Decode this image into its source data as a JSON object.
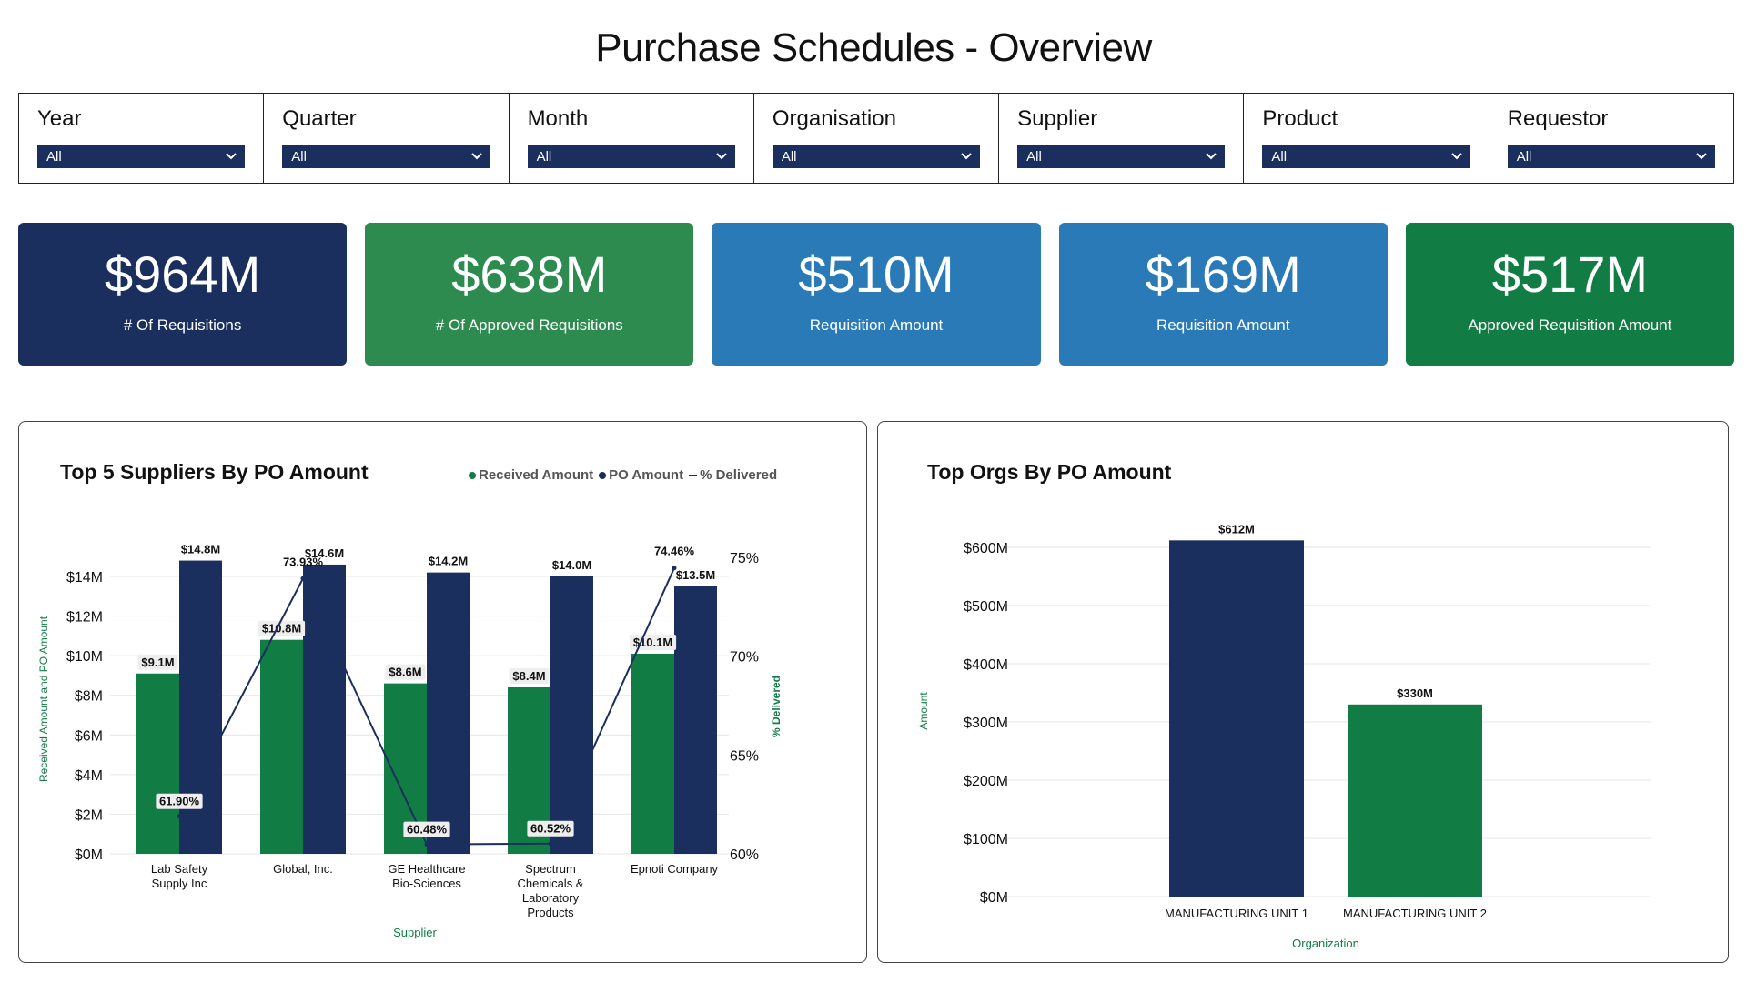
{
  "page": {
    "title": "Purchase Schedules - Overview"
  },
  "filters": [
    {
      "label": "Year",
      "value": "All"
    },
    {
      "label": "Quarter",
      "value": "All"
    },
    {
      "label": "Month",
      "value": "All"
    },
    {
      "label": "Organisation",
      "value": "All"
    },
    {
      "label": "Supplier",
      "value": "All"
    },
    {
      "label": "Product",
      "value": "All"
    },
    {
      "label": "Requestor",
      "value": "All"
    }
  ],
  "kpis": [
    {
      "value": "$964M",
      "label": "# Of Requisitions",
      "color": "#1a2f5e"
    },
    {
      "value": "$638M",
      "label": "# Of Approved Requisitions",
      "color": "#2e8b50"
    },
    {
      "value": "$510M",
      "label": "Requisition Amount",
      "color": "#2a7ab8"
    },
    {
      "value": "$169M",
      "label": "Requisition Amount",
      "color": "#2a7ab8"
    },
    {
      "value": "$517M",
      "label": "Approved Requisition Amount",
      "color": "#127c45"
    }
  ],
  "colors": {
    "navy": "#1a2f5e",
    "green": "#127c45",
    "axis_label": "#127c45",
    "grid": "#e6e6e6"
  },
  "icons": {
    "dropdown": "chevron-down-icon"
  },
  "chart_data": [
    {
      "type": "bar",
      "title": "Top 5 Suppliers By PO Amount",
      "legend": [
        "Received Amount",
        "PO Amount",
        "% Delivered"
      ],
      "legend_position": "top-right",
      "xlabel": "Supplier",
      "ylabel": "Received Amount and PO Amount",
      "y2label": "% Delivered",
      "categories": [
        [
          "Lab Safety",
          "Supply Inc"
        ],
        [
          "Global, Inc."
        ],
        [
          "GE Healthcare",
          "Bio-Sciences"
        ],
        [
          "Spectrum",
          "Chemicals &",
          "Laboratory",
          "Products"
        ],
        [
          "Epnoti Company"
        ]
      ],
      "series": [
        {
          "name": "Received Amount",
          "type": "bar",
          "color": "#127c45",
          "values": [
            9.1,
            10.8,
            8.6,
            8.4,
            10.1
          ],
          "labels": [
            "$9.1M",
            "$10.8M",
            "$8.6M",
            "$8.4M",
            "$10.1M"
          ]
        },
        {
          "name": "PO Amount",
          "type": "bar",
          "color": "#1a2f5e",
          "values": [
            14.8,
            14.6,
            14.2,
            14.0,
            13.5
          ],
          "labels": [
            "$14.8M",
            "$14.6M",
            "$14.2M",
            "$14.0M",
            "$13.5M"
          ]
        },
        {
          "name": "% Delivered",
          "type": "line",
          "color": "#1a2f5e",
          "values": [
            61.9,
            73.93,
            60.48,
            60.52,
            74.46
          ],
          "labels": [
            "61.90%",
            "73.93%",
            "60.48%",
            "60.52%",
            "74.46%"
          ]
        }
      ],
      "ylim": [
        0,
        14
      ],
      "yticks": [
        "$0M",
        "$2M",
        "$4M",
        "$6M",
        "$8M",
        "$10M",
        "$12M",
        "$14M"
      ],
      "y2lim": [
        60,
        75
      ],
      "y2ticks": [
        "60%",
        "65%",
        "70%",
        "75%"
      ],
      "grid": true
    },
    {
      "type": "bar",
      "title": "Top Orgs By PO Amount",
      "xlabel": "Organization",
      "ylabel": "Amount",
      "categories": [
        "MANUFACTURING UNIT 1",
        "MANUFACTURING UNIT 2"
      ],
      "values": [
        612,
        330
      ],
      "labels": [
        "$612M",
        "$330M"
      ],
      "colors": [
        "#1a2f5e",
        "#127c45"
      ],
      "ylim": [
        0,
        600
      ],
      "yticks": [
        "$0M",
        "$100M",
        "$200M",
        "$300M",
        "$400M",
        "$500M",
        "$600M"
      ],
      "grid": true
    }
  ]
}
